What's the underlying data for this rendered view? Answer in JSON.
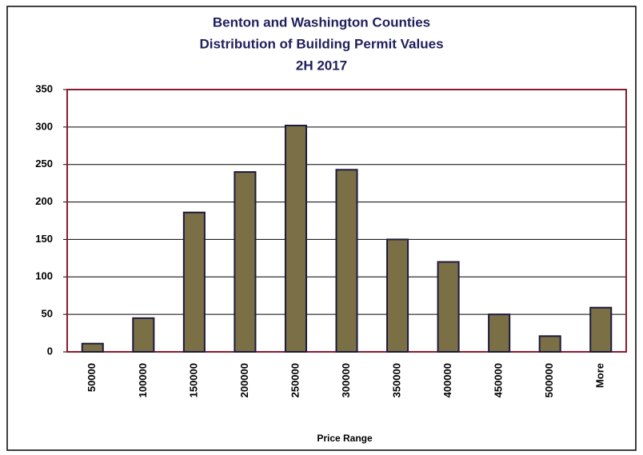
{
  "chart_data": {
    "type": "bar",
    "title": [
      "Benton and Washington Counties",
      "Distribution of Building Permit Values",
      "2H 2017"
    ],
    "xlabel": "Price Range",
    "categories": [
      "50000",
      "100000",
      "150000",
      "200000",
      "250000",
      "300000",
      "350000",
      "400000",
      "450000",
      "500000",
      "More"
    ],
    "values": [
      11,
      45,
      186,
      240,
      302,
      243,
      150,
      120,
      50,
      21,
      59
    ],
    "color": "#7b7045",
    "ylim": [
      0,
      350
    ],
    "yticks": [
      0,
      50,
      100,
      150,
      200,
      250,
      300,
      350
    ],
    "grid": true
  }
}
